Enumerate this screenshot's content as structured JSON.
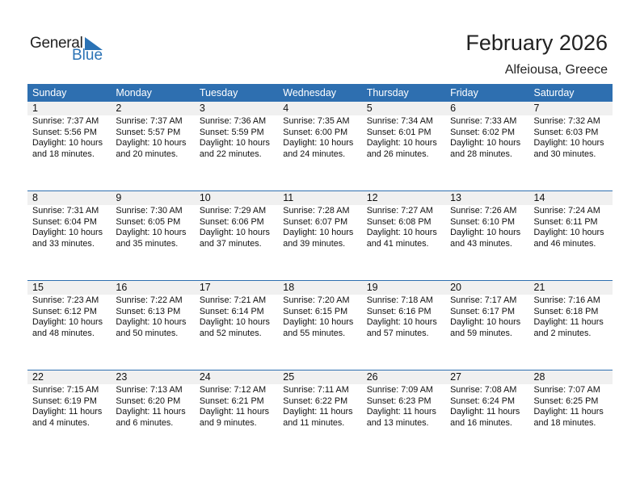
{
  "logo": {
    "line1": "General",
    "line2": "Blue",
    "accent": "#2a72b5"
  },
  "title": "February 2026",
  "location": "Alfeiousa, Greece",
  "colors": {
    "header_bg": "#2e6fb0",
    "daynum_bg": "#f0f0f0"
  },
  "weekdays": [
    "Sunday",
    "Monday",
    "Tuesday",
    "Wednesday",
    "Thursday",
    "Friday",
    "Saturday"
  ],
  "weeks": [
    [
      {
        "day": "1",
        "sunrise": "Sunrise: 7:37 AM",
        "sunset": "Sunset: 5:56 PM",
        "daylight1": "Daylight: 10 hours",
        "daylight2": "and 18 minutes."
      },
      {
        "day": "2",
        "sunrise": "Sunrise: 7:37 AM",
        "sunset": "Sunset: 5:57 PM",
        "daylight1": "Daylight: 10 hours",
        "daylight2": "and 20 minutes."
      },
      {
        "day": "3",
        "sunrise": "Sunrise: 7:36 AM",
        "sunset": "Sunset: 5:59 PM",
        "daylight1": "Daylight: 10 hours",
        "daylight2": "and 22 minutes."
      },
      {
        "day": "4",
        "sunrise": "Sunrise: 7:35 AM",
        "sunset": "Sunset: 6:00 PM",
        "daylight1": "Daylight: 10 hours",
        "daylight2": "and 24 minutes."
      },
      {
        "day": "5",
        "sunrise": "Sunrise: 7:34 AM",
        "sunset": "Sunset: 6:01 PM",
        "daylight1": "Daylight: 10 hours",
        "daylight2": "and 26 minutes."
      },
      {
        "day": "6",
        "sunrise": "Sunrise: 7:33 AM",
        "sunset": "Sunset: 6:02 PM",
        "daylight1": "Daylight: 10 hours",
        "daylight2": "and 28 minutes."
      },
      {
        "day": "7",
        "sunrise": "Sunrise: 7:32 AM",
        "sunset": "Sunset: 6:03 PM",
        "daylight1": "Daylight: 10 hours",
        "daylight2": "and 30 minutes."
      }
    ],
    [
      {
        "day": "8",
        "sunrise": "Sunrise: 7:31 AM",
        "sunset": "Sunset: 6:04 PM",
        "daylight1": "Daylight: 10 hours",
        "daylight2": "and 33 minutes."
      },
      {
        "day": "9",
        "sunrise": "Sunrise: 7:30 AM",
        "sunset": "Sunset: 6:05 PM",
        "daylight1": "Daylight: 10 hours",
        "daylight2": "and 35 minutes."
      },
      {
        "day": "10",
        "sunrise": "Sunrise: 7:29 AM",
        "sunset": "Sunset: 6:06 PM",
        "daylight1": "Daylight: 10 hours",
        "daylight2": "and 37 minutes."
      },
      {
        "day": "11",
        "sunrise": "Sunrise: 7:28 AM",
        "sunset": "Sunset: 6:07 PM",
        "daylight1": "Daylight: 10 hours",
        "daylight2": "and 39 minutes."
      },
      {
        "day": "12",
        "sunrise": "Sunrise: 7:27 AM",
        "sunset": "Sunset: 6:08 PM",
        "daylight1": "Daylight: 10 hours",
        "daylight2": "and 41 minutes."
      },
      {
        "day": "13",
        "sunrise": "Sunrise: 7:26 AM",
        "sunset": "Sunset: 6:10 PM",
        "daylight1": "Daylight: 10 hours",
        "daylight2": "and 43 minutes."
      },
      {
        "day": "14",
        "sunrise": "Sunrise: 7:24 AM",
        "sunset": "Sunset: 6:11 PM",
        "daylight1": "Daylight: 10 hours",
        "daylight2": "and 46 minutes."
      }
    ],
    [
      {
        "day": "15",
        "sunrise": "Sunrise: 7:23 AM",
        "sunset": "Sunset: 6:12 PM",
        "daylight1": "Daylight: 10 hours",
        "daylight2": "and 48 minutes."
      },
      {
        "day": "16",
        "sunrise": "Sunrise: 7:22 AM",
        "sunset": "Sunset: 6:13 PM",
        "daylight1": "Daylight: 10 hours",
        "daylight2": "and 50 minutes."
      },
      {
        "day": "17",
        "sunrise": "Sunrise: 7:21 AM",
        "sunset": "Sunset: 6:14 PM",
        "daylight1": "Daylight: 10 hours",
        "daylight2": "and 52 minutes."
      },
      {
        "day": "18",
        "sunrise": "Sunrise: 7:20 AM",
        "sunset": "Sunset: 6:15 PM",
        "daylight1": "Daylight: 10 hours",
        "daylight2": "and 55 minutes."
      },
      {
        "day": "19",
        "sunrise": "Sunrise: 7:18 AM",
        "sunset": "Sunset: 6:16 PM",
        "daylight1": "Daylight: 10 hours",
        "daylight2": "and 57 minutes."
      },
      {
        "day": "20",
        "sunrise": "Sunrise: 7:17 AM",
        "sunset": "Sunset: 6:17 PM",
        "daylight1": "Daylight: 10 hours",
        "daylight2": "and 59 minutes."
      },
      {
        "day": "21",
        "sunrise": "Sunrise: 7:16 AM",
        "sunset": "Sunset: 6:18 PM",
        "daylight1": "Daylight: 11 hours",
        "daylight2": "and 2 minutes."
      }
    ],
    [
      {
        "day": "22",
        "sunrise": "Sunrise: 7:15 AM",
        "sunset": "Sunset: 6:19 PM",
        "daylight1": "Daylight: 11 hours",
        "daylight2": "and 4 minutes."
      },
      {
        "day": "23",
        "sunrise": "Sunrise: 7:13 AM",
        "sunset": "Sunset: 6:20 PM",
        "daylight1": "Daylight: 11 hours",
        "daylight2": "and 6 minutes."
      },
      {
        "day": "24",
        "sunrise": "Sunrise: 7:12 AM",
        "sunset": "Sunset: 6:21 PM",
        "daylight1": "Daylight: 11 hours",
        "daylight2": "and 9 minutes."
      },
      {
        "day": "25",
        "sunrise": "Sunrise: 7:11 AM",
        "sunset": "Sunset: 6:22 PM",
        "daylight1": "Daylight: 11 hours",
        "daylight2": "and 11 minutes."
      },
      {
        "day": "26",
        "sunrise": "Sunrise: 7:09 AM",
        "sunset": "Sunset: 6:23 PM",
        "daylight1": "Daylight: 11 hours",
        "daylight2": "and 13 minutes."
      },
      {
        "day": "27",
        "sunrise": "Sunrise: 7:08 AM",
        "sunset": "Sunset: 6:24 PM",
        "daylight1": "Daylight: 11 hours",
        "daylight2": "and 16 minutes."
      },
      {
        "day": "28",
        "sunrise": "Sunrise: 7:07 AM",
        "sunset": "Sunset: 6:25 PM",
        "daylight1": "Daylight: 11 hours",
        "daylight2": "and 18 minutes."
      }
    ]
  ]
}
